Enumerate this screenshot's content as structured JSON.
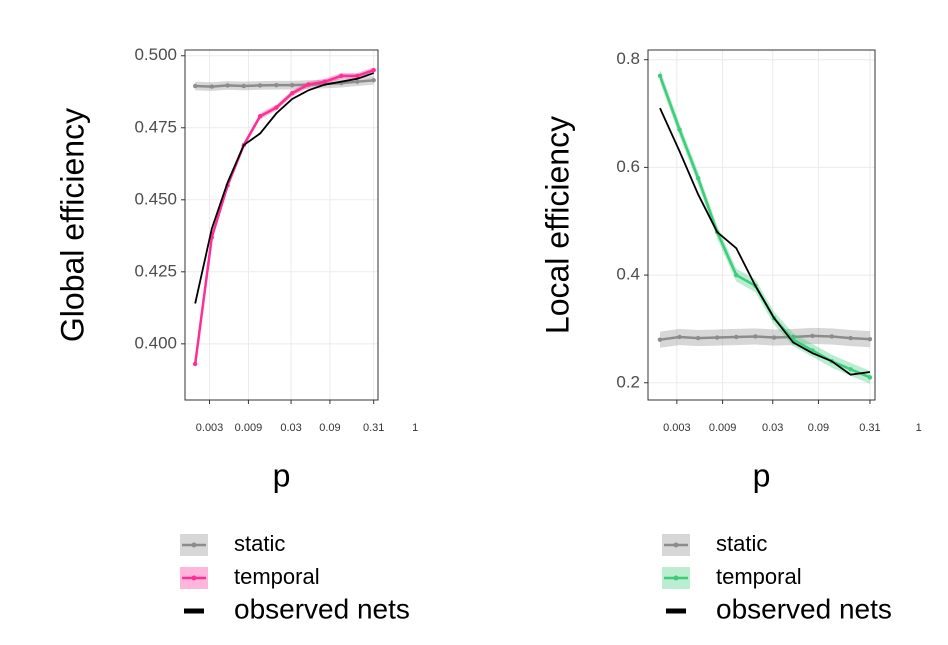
{
  "chart_data": [
    {
      "type": "line",
      "y_label": "Global efficiency",
      "x_label": "p",
      "log_x": true,
      "grid": true,
      "x": [
        0.002,
        0.0032,
        0.005,
        0.0079,
        0.0125,
        0.0198,
        0.031,
        0.049,
        0.078,
        0.124,
        0.195,
        0.31
      ],
      "xlim": [
        0.0015,
        0.35
      ],
      "xticks": [
        0.003,
        0.009,
        0.03,
        0.09,
        0.31,
        1
      ],
      "ylim": [
        0.3805,
        0.502
      ],
      "yticks": [
        {
          "value": 0.4,
          "label": "0.400"
        },
        0.425,
        {
          "value": 0.45,
          "label": "0.450"
        },
        0.475,
        {
          "value": 0.5,
          "label": "0.500"
        }
      ],
      "series": [
        {
          "name": "static",
          "color": "#8c8c8c",
          "band": 0.0015,
          "markers": true,
          "values": [
            0.4895,
            0.4893,
            0.4897,
            0.4895,
            0.4897,
            0.4898,
            0.4898,
            0.49,
            0.4902,
            0.4905,
            0.491,
            0.4915
          ]
        },
        {
          "name": "temporal",
          "color": "#ff2d95",
          "band": 0.001,
          "markers": true,
          "values": [
            0.393,
            0.437,
            0.455,
            0.469,
            0.479,
            0.482,
            0.487,
            0.49,
            0.491,
            0.493,
            0.493,
            0.495
          ]
        },
        {
          "name": "observed nets",
          "color": "#000000",
          "markers": false,
          "values": [
            0.414,
            0.44,
            0.456,
            0.469,
            0.473,
            0.48,
            0.485,
            0.488,
            0.49,
            0.491,
            0.492,
            0.494
          ]
        }
      ]
    },
    {
      "type": "line",
      "y_label": "Local efficiency",
      "x_label": "p",
      "log_x": true,
      "grid": true,
      "x": [
        0.002,
        0.0032,
        0.005,
        0.0079,
        0.0125,
        0.0198,
        0.031,
        0.049,
        0.078,
        0.124,
        0.195,
        0.31
      ],
      "xlim": [
        0.0015,
        0.35
      ],
      "xticks": [
        0.003,
        0.009,
        0.03,
        0.09,
        0.31,
        1
      ],
      "ylim": [
        0.168,
        0.818
      ],
      "yticks": [
        0.2,
        0.4,
        0.6,
        0.8
      ],
      "series": [
        {
          "name": "static",
          "color": "#8c8c8c",
          "band": 0.015,
          "markers": true,
          "values": [
            0.28,
            0.285,
            0.283,
            0.284,
            0.285,
            0.286,
            0.284,
            0.285,
            0.287,
            0.286,
            0.283,
            0.281
          ]
        },
        {
          "name": "temporal",
          "color": "#3dcc7a",
          "band": 0.012,
          "markers": true,
          "values": [
            0.77,
            0.67,
            0.58,
            0.48,
            0.4,
            0.38,
            0.32,
            0.28,
            0.26,
            0.24,
            0.225,
            0.21
          ]
        },
        {
          "name": "observed nets",
          "color": "#000000",
          "markers": false,
          "values": [
            0.71,
            0.63,
            0.55,
            0.48,
            0.45,
            0.38,
            0.32,
            0.275,
            0.255,
            0.24,
            0.215,
            0.22
          ]
        }
      ]
    }
  ]
}
